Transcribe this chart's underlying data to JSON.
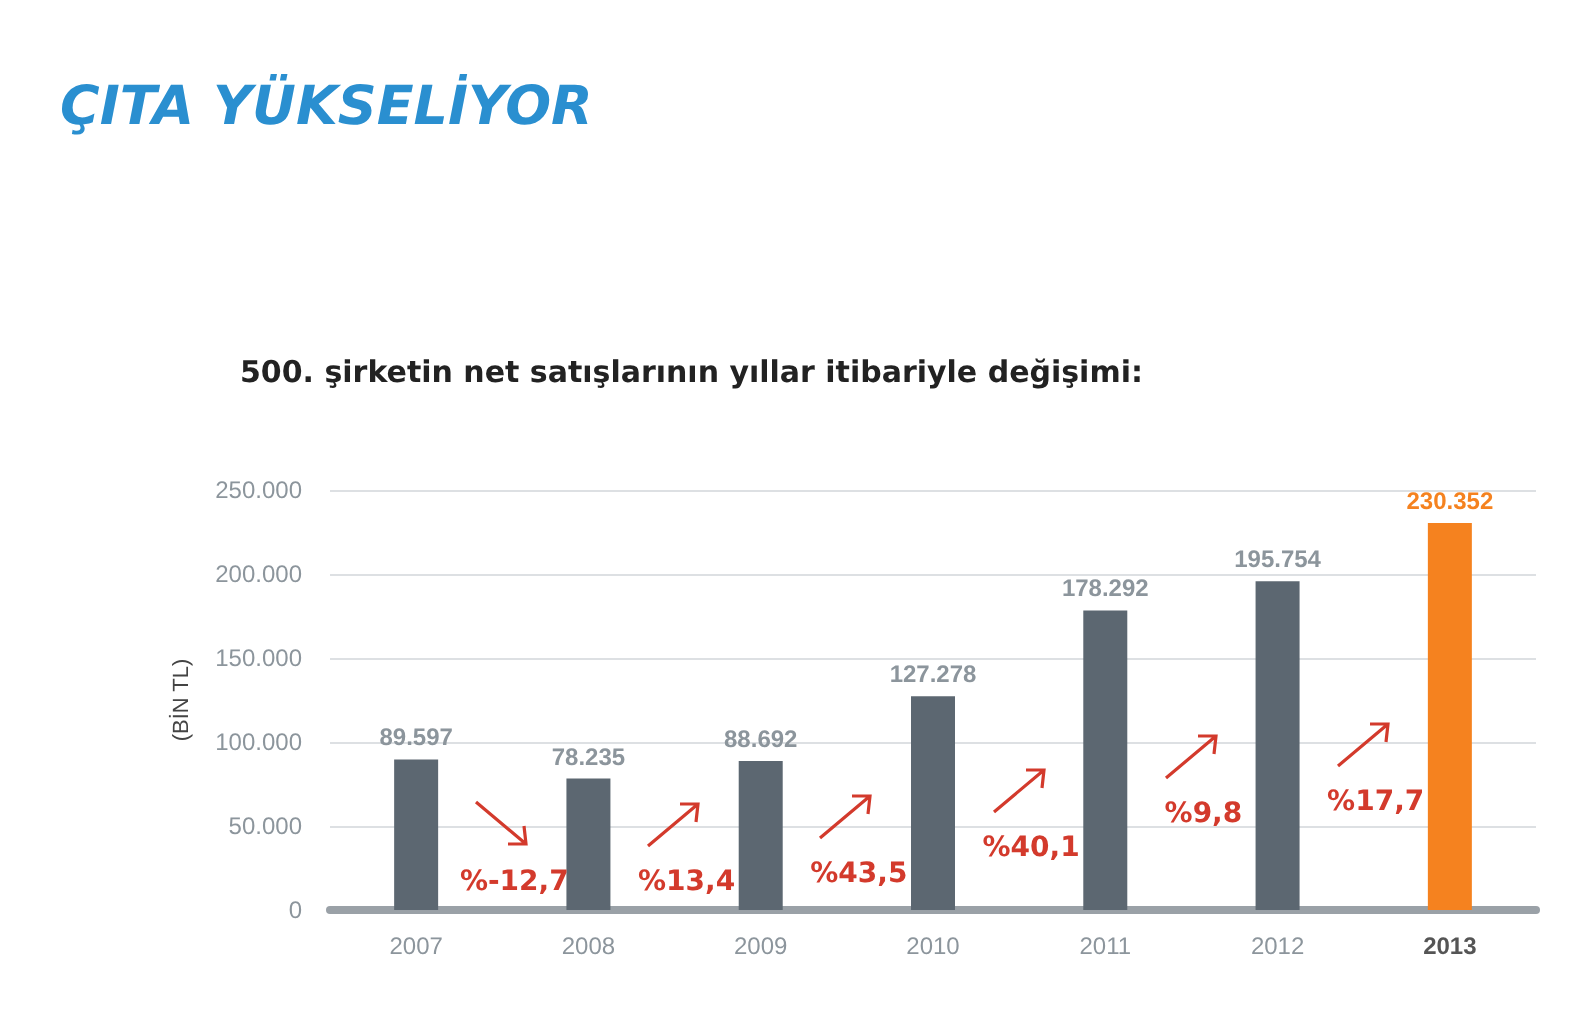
{
  "chart_data": {
    "type": "bar",
    "title": "ÇITA YÜKSELİYOR",
    "subtitle": "500. şirketin net satışlarının yıllar itibariyle değişimi:",
    "ylabel": "(BİN TL)",
    "categories": [
      "2007",
      "2008",
      "2009",
      "2010",
      "2011",
      "2012",
      "2013"
    ],
    "values": [
      89597,
      78235,
      88692,
      127278,
      178292,
      195754,
      230352
    ],
    "value_labels": [
      "89.597",
      "78.235",
      "88.692",
      "127.278",
      "178.292",
      "195.754",
      "230.352"
    ],
    "colors": [
      "#5c6771",
      "#5c6771",
      "#5c6771",
      "#5c6771",
      "#5c6771",
      "#5c6771",
      "#f5821f"
    ],
    "ylim": [
      0,
      250000
    ],
    "yticks": [
      0,
      {
        "value": 50000,
        "label": "50.000"
      },
      {
        "value": 100000,
        "label": "100.000"
      },
      {
        "value": 150000,
        "label": "150.000"
      },
      {
        "value": 200000,
        "label": "200.000"
      },
      {
        "value": 250000,
        "label": "250.000"
      }
    ],
    "grid": "y",
    "annotations": [
      "%-12,7",
      "%13,4",
      "%43,5",
      "%40,1",
      "%9,8",
      "%17,7"
    ]
  }
}
